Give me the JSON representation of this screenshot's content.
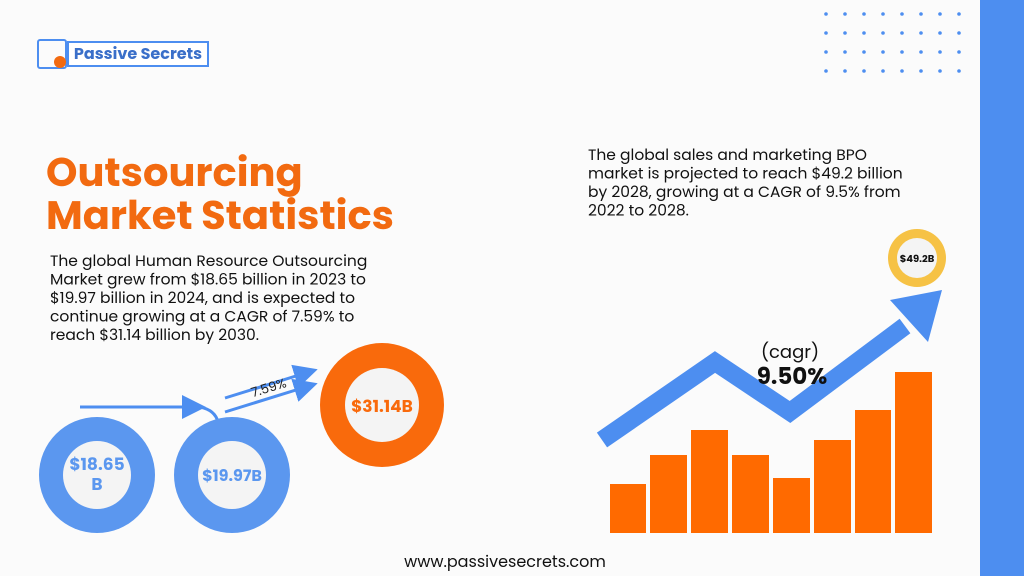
{
  "logo": {
    "brand": "Passive Secrets"
  },
  "title": {
    "lines": [
      "Outsourcing",
      "Market Statistics"
    ]
  },
  "hr_section": {
    "text_lines": [
      "The global Human Resource Outsourcing",
      "Market grew from $18.65 billion in 2023 to",
      "$19.97 billion in 2024, and is expected to",
      "continue growing at a CAGR of 7.59% to",
      "reach $31.14 billion by 2030."
    ],
    "circle_2023": [
      "$18.65",
      "B"
    ],
    "circle_2024": "$19.97B",
    "growth_label": "7.59%",
    "circle_2030": "$31.14B"
  },
  "bpo_section": {
    "text_lines": [
      "The global sales and marketing BPO",
      "market is projected to reach $49.2 billion",
      "by 2028, growing at a CAGR of 9.5% from",
      "2022 to 2028."
    ],
    "cagr_caption": "(cagr)",
    "cagr_value": "9.50%",
    "target_badge": "$49.2B"
  },
  "footer": {
    "url": "www.passivesecrets.com"
  }
}
